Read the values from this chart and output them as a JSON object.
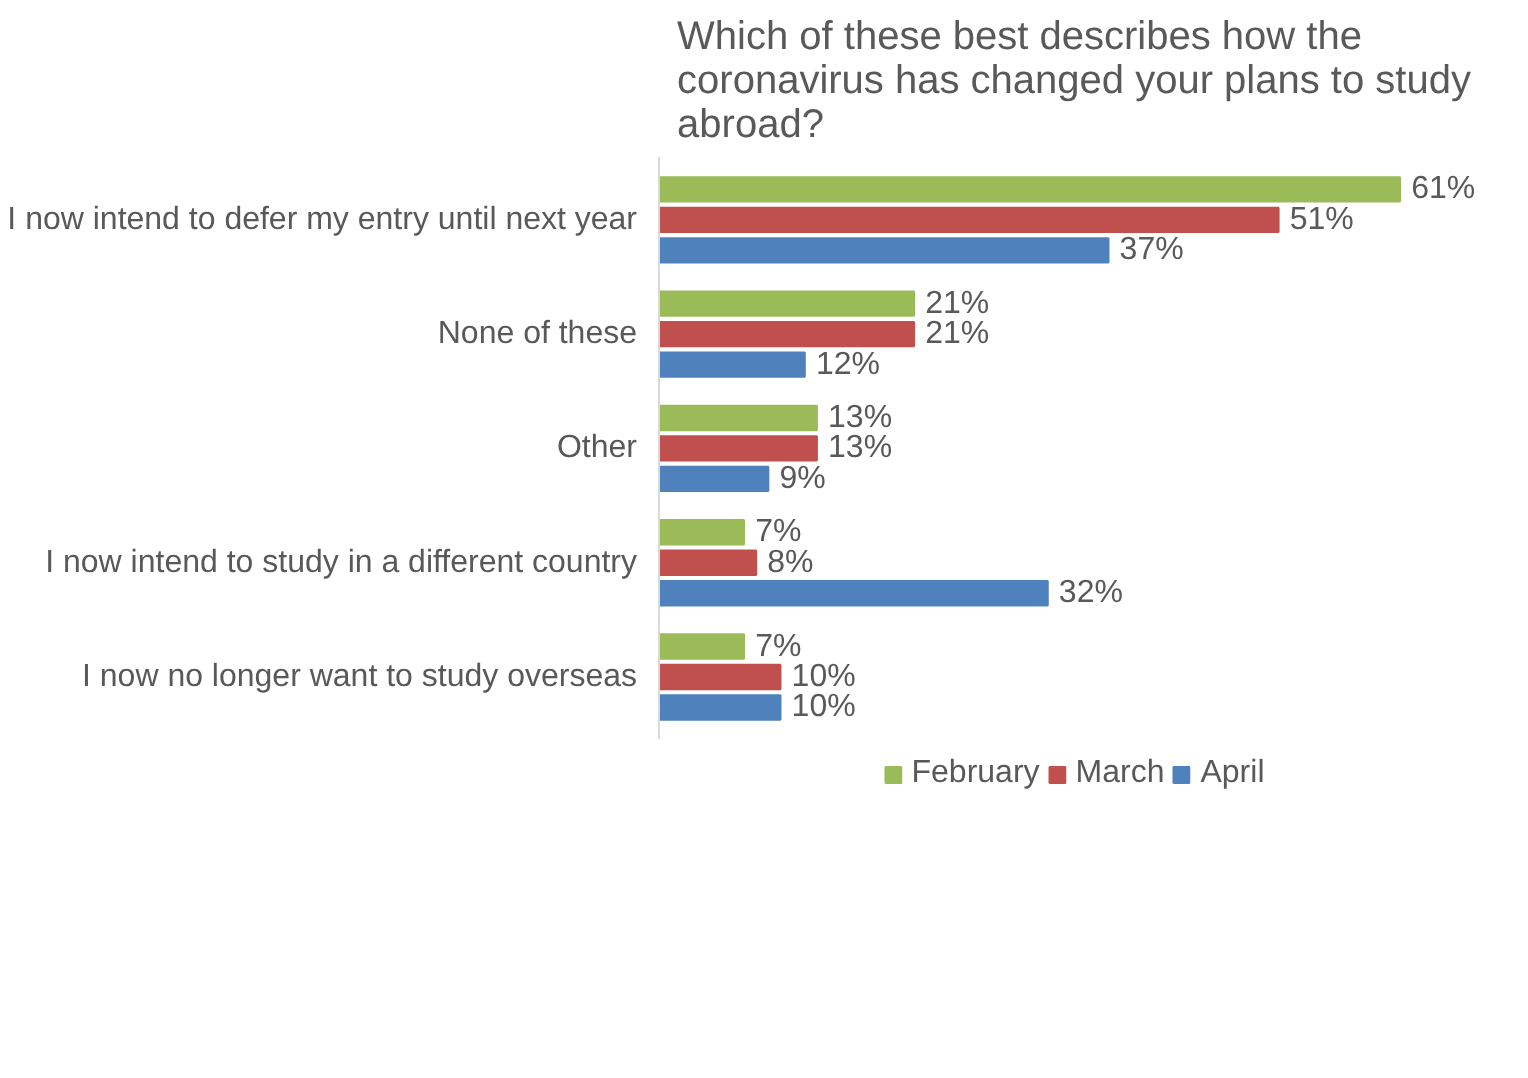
{
  "chart_data": {
    "type": "bar",
    "orientation": "horizontal",
    "title": "Which of these best describes how the\ncoronavirus has changed your plans to study\nabroad?",
    "categories": [
      "I now intend to defer my entry until next year",
      "None of these",
      "Other",
      "I now intend to study in a different country",
      "I now no longer want to study overseas"
    ],
    "series": [
      {
        "name": "February",
        "color": "#9bbb59",
        "values": [
          61,
          21,
          13,
          7,
          7
        ],
        "value_labels": [
          "61%",
          "21%",
          "13%",
          "7%",
          "7%"
        ]
      },
      {
        "name": "March",
        "color": "#c0504d",
        "values": [
          51,
          21,
          13,
          8,
          10
        ],
        "value_labels": [
          "51%",
          "21%",
          "13%",
          "8%",
          "10%"
        ]
      },
      {
        "name": "April",
        "color": "#4f81bd",
        "values": [
          37,
          12,
          9,
          32,
          10
        ],
        "value_labels": [
          "37%",
          "12%",
          "9%",
          "32%",
          "10%"
        ]
      }
    ],
    "legend": "bottom",
    "grid": false
  }
}
